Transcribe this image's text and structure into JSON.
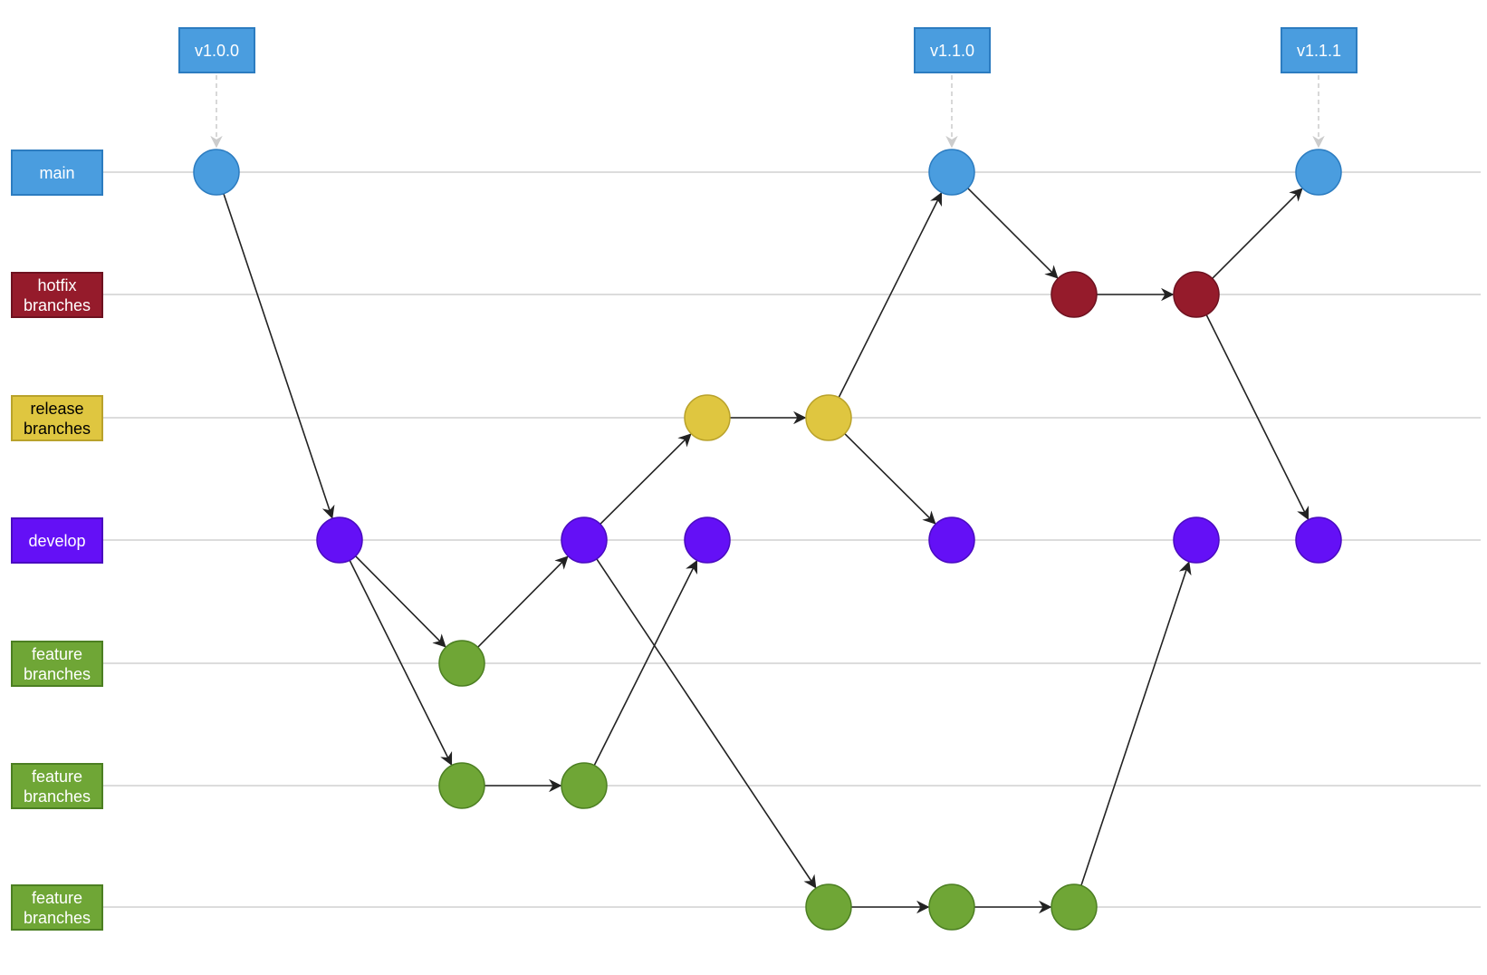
{
  "lanes": [
    {
      "label": "main"
    },
    {
      "label": "hotfix branches"
    },
    {
      "label": "release branches"
    },
    {
      "label": "develop"
    },
    {
      "label": "feature branches"
    },
    {
      "label": "feature branches"
    },
    {
      "label": "feature branches"
    }
  ],
  "tags": [
    {
      "label": "v1.0.0"
    },
    {
      "label": "v1.1.0"
    },
    {
      "label": "v1.1.1"
    }
  ]
}
